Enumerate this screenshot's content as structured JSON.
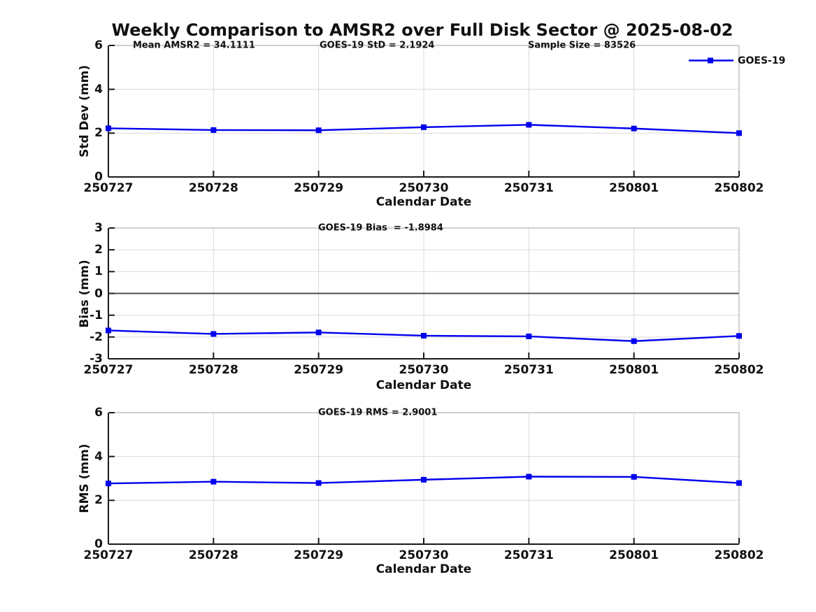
{
  "title": "Weekly Comparison to AMSR2 over Full Disk Sector @ 2025-08-02",
  "legend": {
    "label": "GOES-19",
    "position": "top-right",
    "color": "#0000EE"
  },
  "colors": {
    "line": "#0000EE",
    "grid": "#d9d9d9",
    "axis_dark": "#1a1a1a",
    "axis_light": "#b3b3b3",
    "zero_line": "#4d4d4d",
    "text": "#111111"
  },
  "stats": {
    "mean_amsr2": 34.1111,
    "goes19_std": 2.1924,
    "sample_size": 83526,
    "goes19_bias": -1.8984,
    "goes19_rms": 2.9001
  },
  "chart_data": [
    {
      "type": "line",
      "ylabel": "Std Dev (mm)",
      "xlabel": "Calendar Date",
      "ylim": [
        0,
        6
      ],
      "yticks": [
        0,
        2,
        4,
        6
      ],
      "grid": true,
      "annotations": [
        "Mean AMSR2 = 34.1111",
        "GOES-19 StD = 2.1924",
        "Sample Size = 83526"
      ],
      "categories": [
        "250727",
        "250728",
        "250729",
        "250730",
        "250731",
        "250801",
        "250802"
      ],
      "series": [
        {
          "name": "GOES-19",
          "marker": "square",
          "values": [
            2.22,
            2.14,
            2.13,
            2.27,
            2.38,
            2.21,
            2.0
          ]
        }
      ]
    },
    {
      "type": "line",
      "ylabel": "Bias (mm)",
      "xlabel": "Calendar Date",
      "ylim": [
        -3,
        3
      ],
      "yticks": [
        -3,
        -2,
        -1,
        0,
        1,
        2,
        3
      ],
      "grid": true,
      "zero_line": true,
      "annotations": [
        "GOES-19 Bias  = -1.8984"
      ],
      "categories": [
        "250727",
        "250728",
        "250729",
        "250730",
        "250731",
        "250801",
        "250802"
      ],
      "series": [
        {
          "name": "GOES-19",
          "marker": "square",
          "values": [
            -1.7,
            -1.86,
            -1.79,
            -1.94,
            -1.97,
            -2.19,
            -1.95
          ]
        }
      ]
    },
    {
      "type": "line",
      "ylabel": "RMS (mm)",
      "xlabel": "Calendar Date",
      "ylim": [
        0,
        6
      ],
      "yticks": [
        0,
        2,
        4,
        6
      ],
      "grid": true,
      "annotations": [
        "GOES-19 RMS = 2.9001"
      ],
      "categories": [
        "250727",
        "250728",
        "250729",
        "250730",
        "250731",
        "250801",
        "250802"
      ],
      "series": [
        {
          "name": "GOES-19",
          "marker": "square",
          "values": [
            2.77,
            2.85,
            2.79,
            2.94,
            3.08,
            3.07,
            2.79
          ]
        }
      ]
    }
  ]
}
